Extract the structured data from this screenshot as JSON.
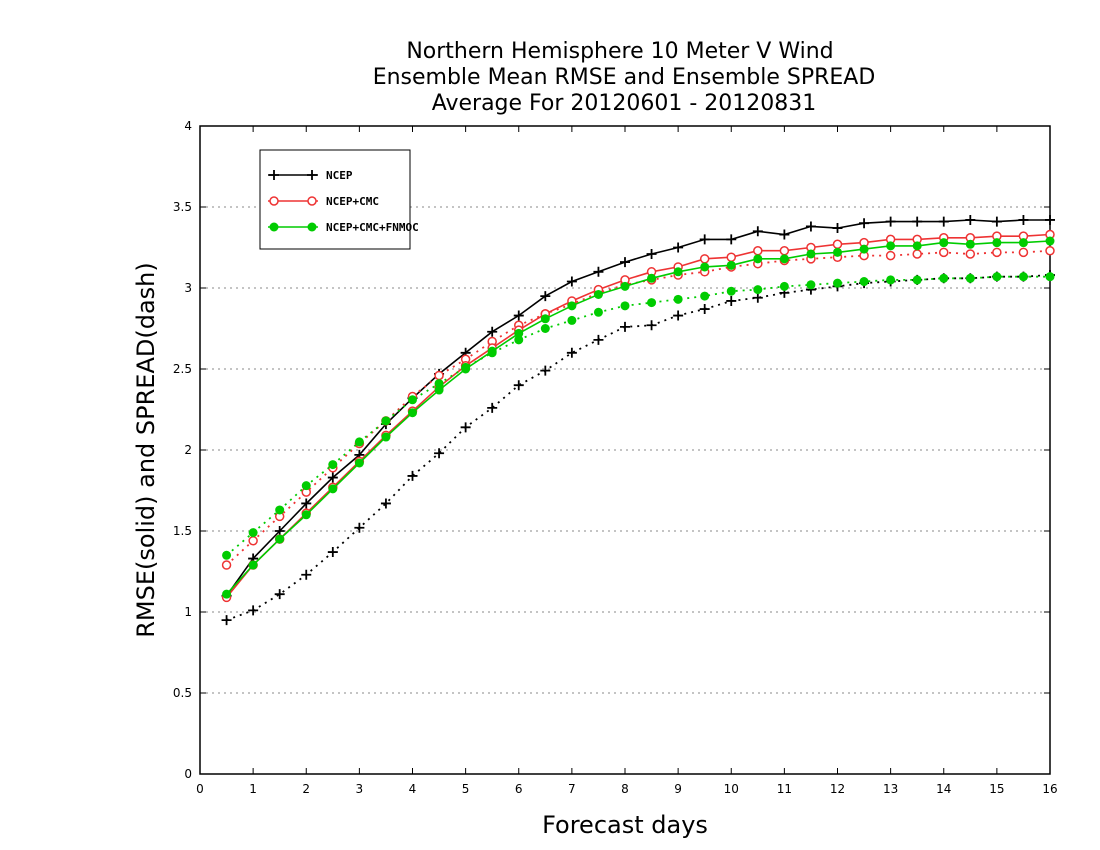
{
  "chart_data": {
    "type": "line",
    "title": [
      "Northern Hemisphere 10 Meter V Wind",
      "Ensemble Mean RMSE and Ensemble SPREAD",
      "Average For 20120601 - 20120831"
    ],
    "xlabel": "Forecast days",
    "ylabel": "RMSE(solid) and SPREAD(dash)",
    "xlim": [
      0,
      16
    ],
    "ylim": [
      0,
      4
    ],
    "x_ticks": [
      0,
      1,
      2,
      3,
      4,
      5,
      6,
      7,
      8,
      9,
      10,
      11,
      12,
      13,
      14,
      15,
      16
    ],
    "y_ticks": [
      0,
      0.5,
      1,
      1.5,
      2,
      2.5,
      3,
      3.5,
      4
    ],
    "y_tick_labels": [
      "0",
      "0.5",
      "1",
      "1.5",
      "2",
      "2.5",
      "3",
      "3.5",
      "4"
    ],
    "grid": "horizontal dotted",
    "legend_position": "top-left",
    "x": [
      0.5,
      1,
      1.5,
      2,
      2.5,
      3,
      3.5,
      4,
      4.5,
      5,
      5.5,
      6,
      6.5,
      7,
      7.5,
      8,
      8.5,
      9,
      9.5,
      10,
      10.5,
      11,
      11.5,
      12,
      12.5,
      13,
      13.5,
      14,
      14.5,
      15,
      15.5,
      16
    ],
    "series": [
      {
        "name": "NCEP",
        "color": "#000000",
        "marker": "plus",
        "rmse": [
          1.1,
          1.33,
          1.5,
          1.67,
          1.83,
          1.97,
          2.16,
          2.32,
          2.47,
          2.6,
          2.73,
          2.83,
          2.95,
          3.04,
          3.1,
          3.16,
          3.21,
          3.25,
          3.3,
          3.3,
          3.35,
          3.33,
          3.38,
          3.37,
          3.4,
          3.41,
          3.41,
          3.41,
          3.42,
          3.41,
          3.42,
          3.42
        ],
        "spread": [
          0.95,
          1.01,
          1.11,
          1.23,
          1.37,
          1.52,
          1.67,
          1.84,
          1.98,
          2.14,
          2.26,
          2.4,
          2.49,
          2.6,
          2.68,
          2.76,
          2.77,
          2.83,
          2.87,
          2.92,
          2.94,
          2.97,
          2.99,
          3.01,
          3.03,
          3.04,
          3.05,
          3.06,
          3.06,
          3.07,
          3.07,
          3.08
        ]
      },
      {
        "name": "NCEP+CMC",
        "color": "#ee3333",
        "marker": "open-circle",
        "rmse": [
          1.09,
          1.29,
          1.45,
          1.61,
          1.77,
          1.93,
          2.09,
          2.24,
          2.39,
          2.52,
          2.63,
          2.74,
          2.84,
          2.92,
          2.99,
          3.05,
          3.1,
          3.13,
          3.18,
          3.19,
          3.23,
          3.23,
          3.25,
          3.27,
          3.28,
          3.3,
          3.3,
          3.31,
          3.31,
          3.32,
          3.32,
          3.33
        ],
        "spread": [
          1.29,
          1.44,
          1.59,
          1.74,
          1.89,
          2.04,
          2.18,
          2.33,
          2.46,
          2.56,
          2.67,
          2.77,
          2.84,
          2.9,
          2.97,
          3.02,
          3.05,
          3.08,
          3.1,
          3.13,
          3.15,
          3.17,
          3.18,
          3.19,
          3.2,
          3.2,
          3.21,
          3.22,
          3.21,
          3.22,
          3.22,
          3.23
        ]
      },
      {
        "name": "NCEP+CMC+FNMOC",
        "color": "#00cc00",
        "marker": "filled-circle",
        "rmse": [
          1.11,
          1.29,
          1.45,
          1.6,
          1.76,
          1.92,
          2.08,
          2.23,
          2.37,
          2.5,
          2.61,
          2.72,
          2.81,
          2.89,
          2.96,
          3.01,
          3.06,
          3.1,
          3.13,
          3.14,
          3.18,
          3.18,
          3.21,
          3.22,
          3.24,
          3.26,
          3.26,
          3.28,
          3.27,
          3.28,
          3.28,
          3.29
        ],
        "spread": [
          1.35,
          1.49,
          1.63,
          1.78,
          1.91,
          2.05,
          2.18,
          2.31,
          2.41,
          2.51,
          2.6,
          2.68,
          2.75,
          2.8,
          2.85,
          2.89,
          2.91,
          2.93,
          2.95,
          2.98,
          2.99,
          3.01,
          3.02,
          3.03,
          3.04,
          3.05,
          3.05,
          3.06,
          3.06,
          3.07,
          3.07,
          3.07
        ]
      }
    ]
  }
}
